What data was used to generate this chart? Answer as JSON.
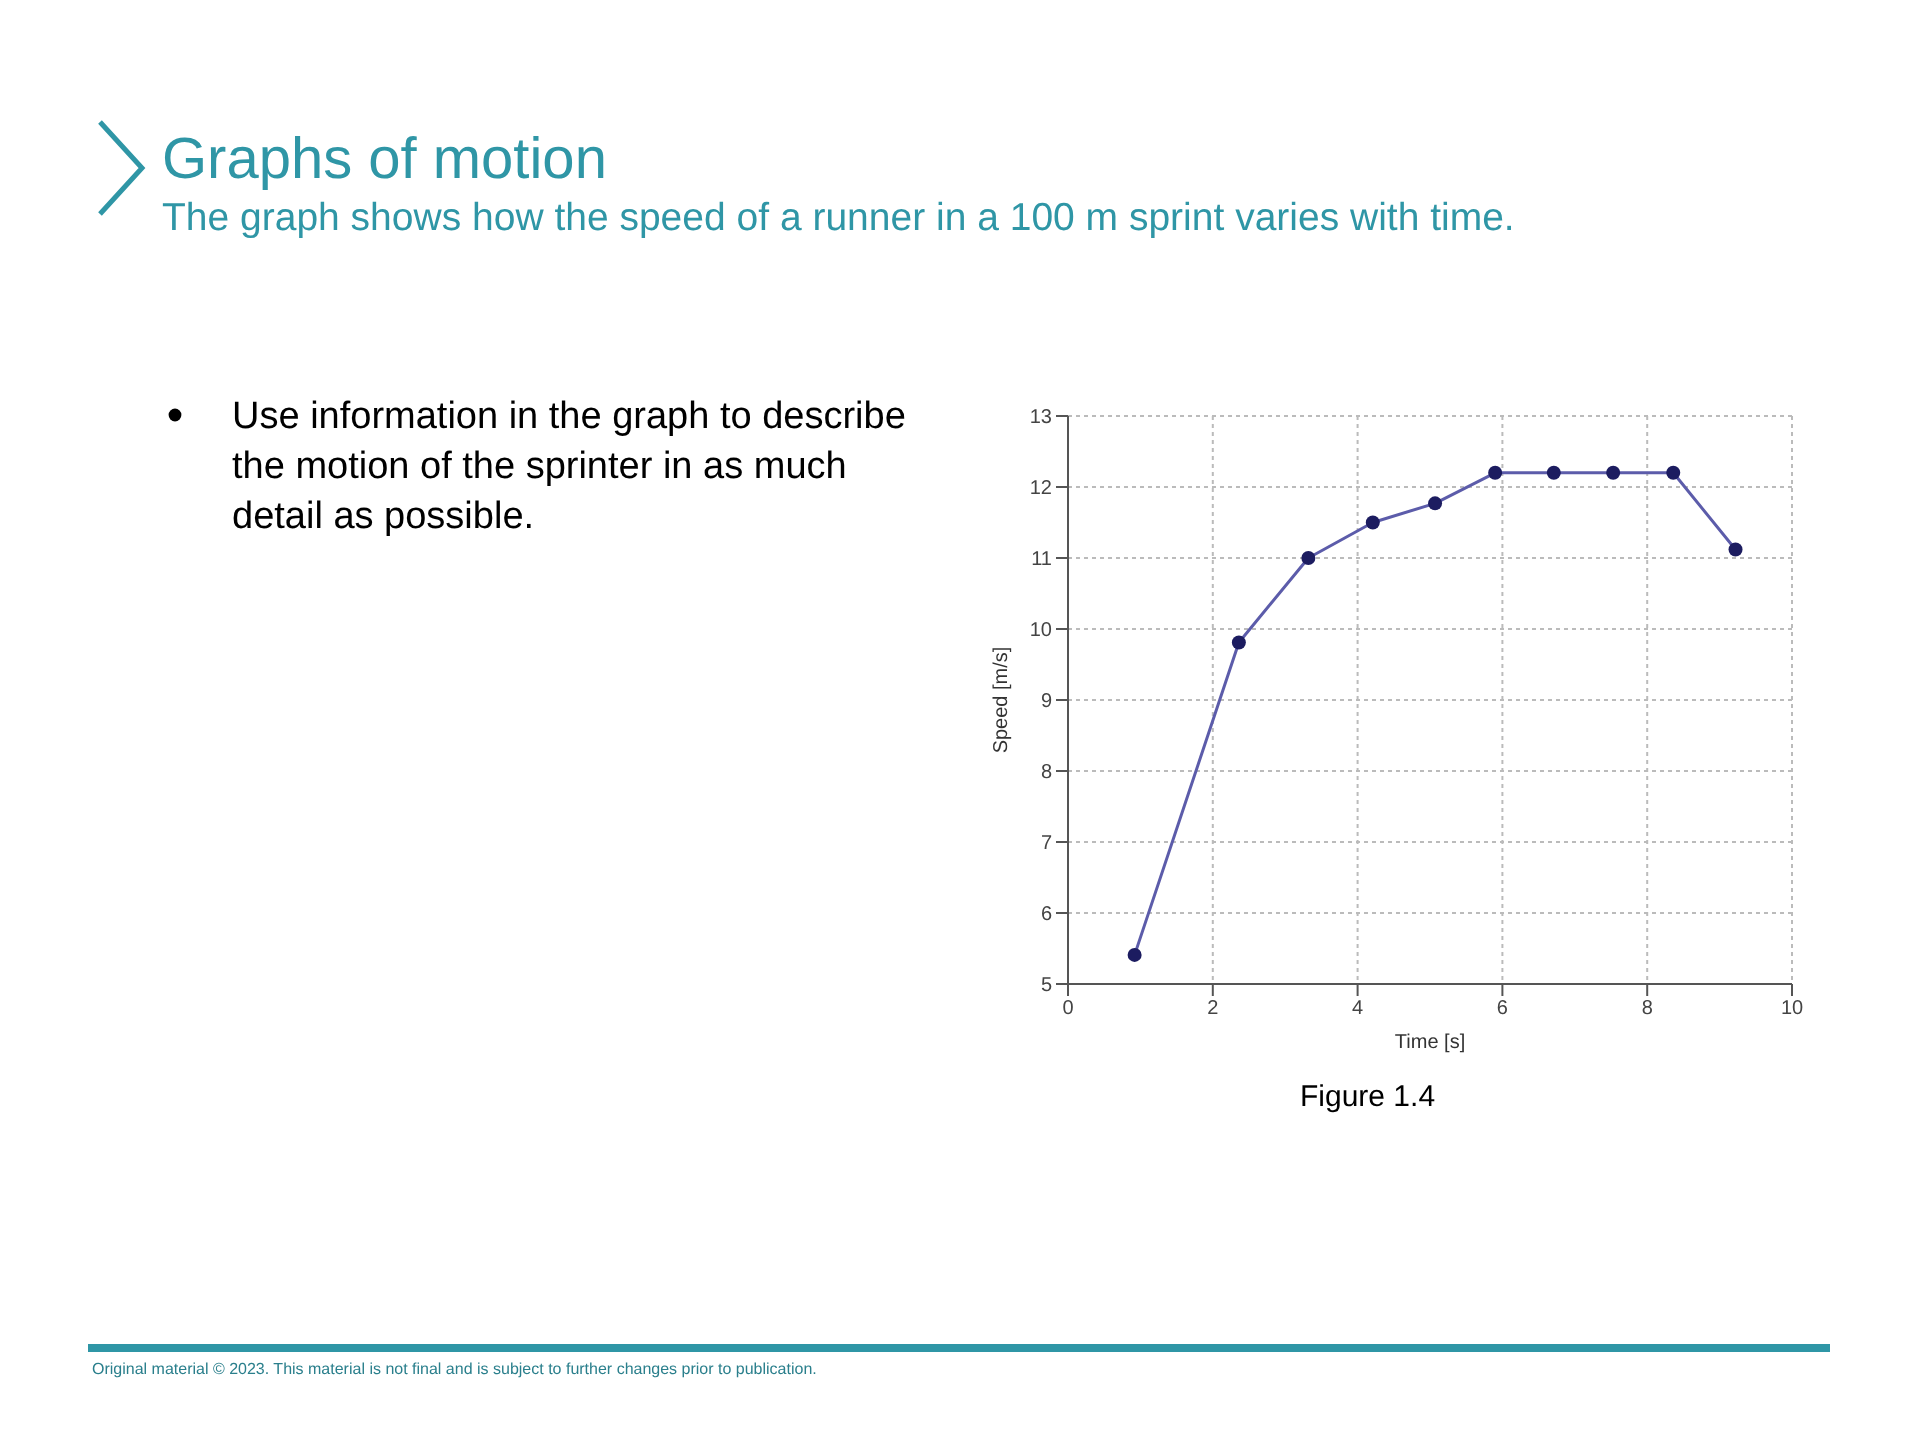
{
  "chart_data": {
    "type": "line",
    "title": "Graphs of motion",
    "subtitle": "The graph shows how the speed of a runner in a 100 m sprint varies with time.",
    "xlabel": "Time [s]",
    "ylabel": "Speed [m/s]",
    "x": [
      0.92,
      2.36,
      3.32,
      4.21,
      5.07,
      5.9,
      6.71,
      7.53,
      8.36,
      9.22
    ],
    "series": [
      {
        "color": "#5c5caa",
        "values": [
          5.41,
          9.81,
          11.0,
          11.5,
          11.77,
          12.2,
          12.2,
          12.2,
          12.2,
          11.12
        ]
      }
    ],
    "xlim": [
      0,
      10
    ],
    "xticks": [
      0,
      2,
      4,
      6,
      8,
      10
    ],
    "ylim": [
      5,
      13
    ],
    "yticks": [
      5,
      6,
      7,
      8,
      9,
      10,
      11,
      12,
      13
    ],
    "grid": true,
    "marker": "circle",
    "line_style": "solid",
    "annotations": [
      "Use information in the graph to describe the motion of the sprinter in as much detail as possible.",
      "Figure 1.4",
      "Original material © 2023. This material is not final and is subject to further changes prior to publication."
    ]
  }
}
